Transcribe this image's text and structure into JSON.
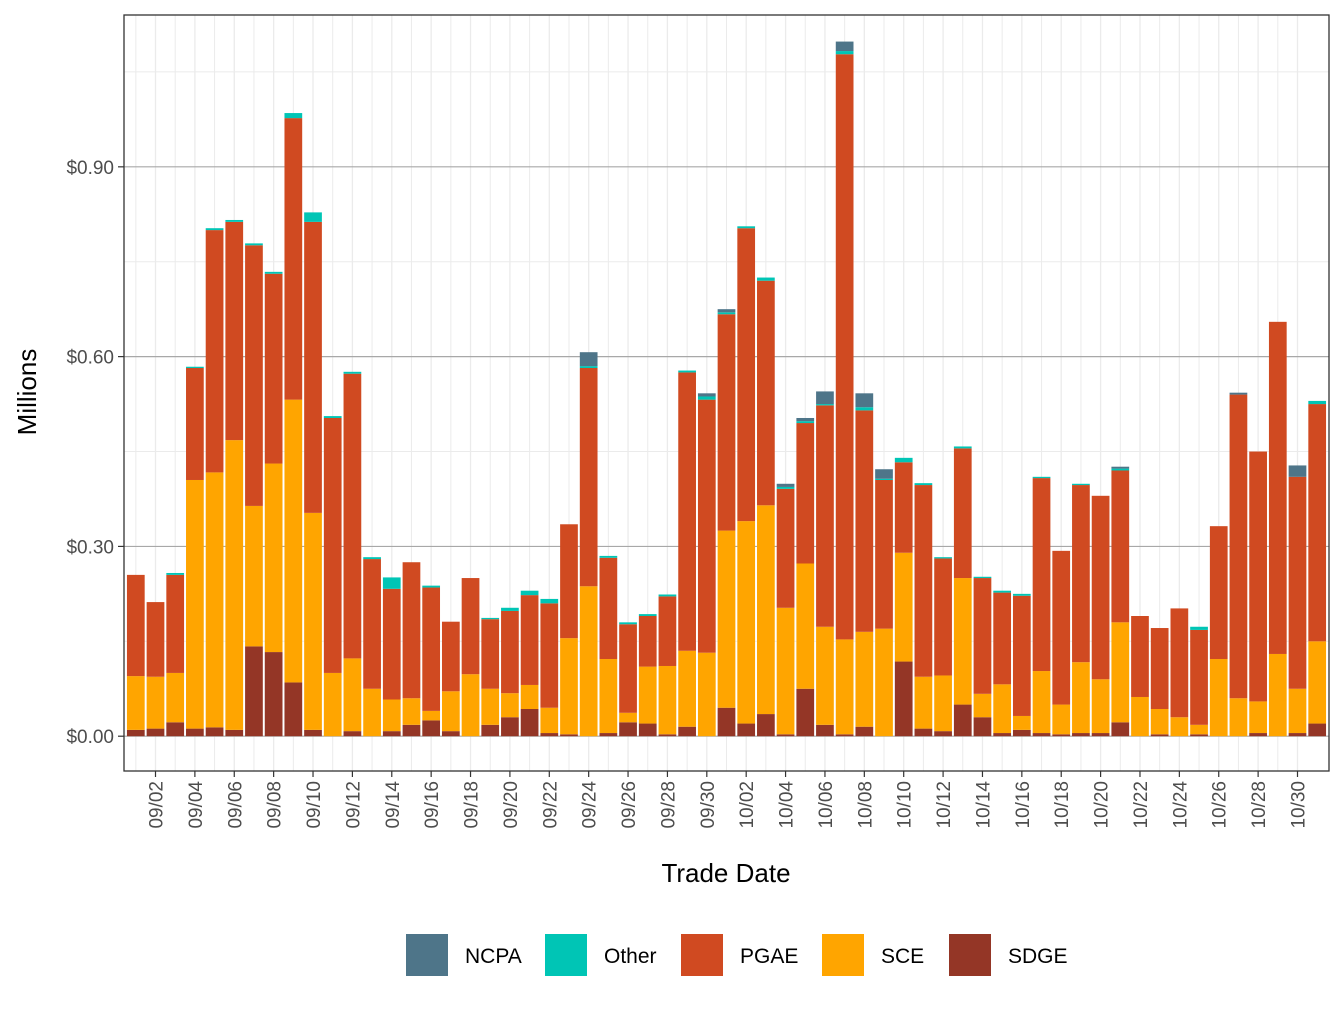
{
  "chart_data": {
    "type": "bar",
    "stacked": true,
    "xlabel": "Trade Date",
    "ylabel": "Millions",
    "ylim": [
      -0.055,
      1.14
    ],
    "grid": true,
    "legend_position": "bottom",
    "y_ticks": [
      {
        "value": 0.0,
        "label": "$0.00"
      },
      {
        "value": 0.3,
        "label": "$0.30"
      },
      {
        "value": 0.6,
        "label": "$0.60"
      },
      {
        "value": 0.9,
        "label": "$0.90"
      }
    ],
    "x_ticks": [
      {
        "index": 1,
        "label": "09/02"
      },
      {
        "index": 3,
        "label": "09/04"
      },
      {
        "index": 5,
        "label": "09/06"
      },
      {
        "index": 7,
        "label": "09/08"
      },
      {
        "index": 9,
        "label": "09/10"
      },
      {
        "index": 11,
        "label": "09/12"
      },
      {
        "index": 13,
        "label": "09/14"
      },
      {
        "index": 15,
        "label": "09/16"
      },
      {
        "index": 17,
        "label": "09/18"
      },
      {
        "index": 19,
        "label": "09/20"
      },
      {
        "index": 21,
        "label": "09/22"
      },
      {
        "index": 23,
        "label": "09/24"
      },
      {
        "index": 25,
        "label": "09/26"
      },
      {
        "index": 27,
        "label": "09/28"
      },
      {
        "index": 29,
        "label": "09/30"
      },
      {
        "index": 31,
        "label": "10/02"
      },
      {
        "index": 33,
        "label": "10/04"
      },
      {
        "index": 35,
        "label": "10/06"
      },
      {
        "index": 37,
        "label": "10/08"
      },
      {
        "index": 39,
        "label": "10/10"
      },
      {
        "index": 41,
        "label": "10/12"
      },
      {
        "index": 43,
        "label": "10/14"
      },
      {
        "index": 45,
        "label": "10/16"
      },
      {
        "index": 47,
        "label": "10/18"
      },
      {
        "index": 49,
        "label": "10/20"
      },
      {
        "index": 51,
        "label": "10/22"
      },
      {
        "index": 53,
        "label": "10/24"
      },
      {
        "index": 55,
        "label": "10/26"
      },
      {
        "index": 57,
        "label": "10/28"
      },
      {
        "index": 59,
        "label": "10/30"
      }
    ],
    "categories": [
      "09/01",
      "09/02",
      "09/03",
      "09/04",
      "09/05",
      "09/06",
      "09/07",
      "09/08",
      "09/09",
      "09/10",
      "09/11",
      "09/12",
      "09/13",
      "09/14",
      "09/15",
      "09/16",
      "09/17",
      "09/18",
      "09/19",
      "09/20",
      "09/21",
      "09/22",
      "09/23",
      "09/24",
      "09/25",
      "09/26",
      "09/27",
      "09/28",
      "09/29",
      "09/30",
      "10/01",
      "10/02",
      "10/03",
      "10/04",
      "10/05",
      "10/06",
      "10/07",
      "10/08",
      "10/09",
      "10/10",
      "10/11",
      "10/12",
      "10/13",
      "10/14",
      "10/15",
      "10/16",
      "10/17",
      "10/18",
      "10/19",
      "10/20",
      "10/21",
      "10/22",
      "10/23",
      "10/24",
      "10/25",
      "10/26",
      "10/27",
      "10/28",
      "10/29",
      "10/30",
      "10/31"
    ],
    "stack_order": [
      "SDGE",
      "SCE",
      "PGAE",
      "Other",
      "NCPA"
    ],
    "series": [
      {
        "name": "SDGE",
        "color": "#943626",
        "values": [
          0.01,
          0.012,
          0.022,
          0.012,
          0.014,
          0.01,
          0.142,
          0.133,
          0.085,
          0.01,
          0.0,
          0.008,
          0.0,
          0.008,
          0.018,
          0.025,
          0.008,
          0.0,
          0.018,
          0.03,
          0.043,
          0.005,
          0.003,
          0.0,
          0.005,
          0.022,
          0.02,
          0.003,
          0.015,
          0.0,
          0.045,
          0.02,
          0.035,
          0.003,
          0.075,
          0.018,
          0.003,
          0.015,
          0.0,
          0.118,
          0.012,
          0.008,
          0.05,
          0.03,
          0.005,
          0.01,
          0.005,
          0.003,
          0.005,
          0.005,
          0.022,
          0.0,
          0.003,
          0.0,
          0.003,
          0.0,
          0.0,
          0.005,
          0.0,
          0.005,
          0.02
        ]
      },
      {
        "name": "SCE",
        "color": "#FFA500",
        "values": [
          0.085,
          0.082,
          0.078,
          0.393,
          0.403,
          0.458,
          0.222,
          0.298,
          0.447,
          0.343,
          0.1,
          0.115,
          0.075,
          0.05,
          0.042,
          0.015,
          0.063,
          0.098,
          0.057,
          0.038,
          0.038,
          0.04,
          0.152,
          0.237,
          0.117,
          0.015,
          0.09,
          0.108,
          0.12,
          0.132,
          0.28,
          0.32,
          0.33,
          0.2,
          0.198,
          0.155,
          0.15,
          0.15,
          0.17,
          0.172,
          0.082,
          0.088,
          0.2,
          0.037,
          0.077,
          0.022,
          0.098,
          0.047,
          0.112,
          0.085,
          0.158,
          0.062,
          0.04,
          0.03,
          0.015,
          0.122,
          0.06,
          0.05,
          0.13,
          0.07,
          0.13
        ]
      },
      {
        "name": "PGAE",
        "color": "#D04A21",
        "values": [
          0.16,
          0.118,
          0.155,
          0.177,
          0.383,
          0.345,
          0.412,
          0.3,
          0.445,
          0.46,
          0.403,
          0.45,
          0.205,
          0.175,
          0.215,
          0.195,
          0.11,
          0.152,
          0.11,
          0.13,
          0.142,
          0.165,
          0.18,
          0.345,
          0.16,
          0.14,
          0.08,
          0.11,
          0.44,
          0.4,
          0.342,
          0.463,
          0.355,
          0.188,
          0.222,
          0.35,
          0.925,
          0.35,
          0.235,
          0.143,
          0.303,
          0.185,
          0.205,
          0.183,
          0.145,
          0.19,
          0.305,
          0.243,
          0.28,
          0.29,
          0.24,
          0.128,
          0.128,
          0.172,
          0.15,
          0.21,
          0.48,
          0.395,
          0.525,
          0.335,
          0.375
        ]
      },
      {
        "name": "Other",
        "color": "#00C5B5",
        "values": [
          0.0,
          0.0,
          0.003,
          0.002,
          0.003,
          0.003,
          0.003,
          0.003,
          0.008,
          0.015,
          0.003,
          0.003,
          0.003,
          0.018,
          0.0,
          0.003,
          0.0,
          0.0,
          0.002,
          0.005,
          0.007,
          0.007,
          0.0,
          0.003,
          0.003,
          0.003,
          0.003,
          0.003,
          0.003,
          0.005,
          0.003,
          0.003,
          0.005,
          0.003,
          0.003,
          0.002,
          0.005,
          0.005,
          0.002,
          0.007,
          0.003,
          0.002,
          0.003,
          0.002,
          0.003,
          0.003,
          0.002,
          0.0,
          0.002,
          0.0,
          0.003,
          0.0,
          0.0,
          0.0,
          0.005,
          0.0,
          0.0,
          0.0,
          0.0,
          0.0,
          0.005
        ]
      },
      {
        "name": "NCPA",
        "color": "#4E7589",
        "values": [
          0.0,
          0.0,
          0.0,
          0.0,
          0.0,
          0.0,
          0.0,
          0.0,
          0.0,
          0.0,
          0.0,
          0.0,
          0.0,
          0.0,
          0.0,
          0.0,
          0.0,
          0.0,
          0.0,
          0.0,
          0.0,
          0.0,
          0.0,
          0.022,
          0.0,
          0.0,
          0.0,
          0.0,
          0.0,
          0.005,
          0.005,
          0.0,
          0.0,
          0.005,
          0.005,
          0.02,
          0.015,
          0.022,
          0.015,
          0.0,
          0.0,
          0.0,
          0.0,
          0.0,
          0.0,
          0.0,
          0.0,
          0.0,
          0.0,
          0.0,
          0.003,
          0.0,
          0.0,
          0.0,
          0.0,
          0.0,
          0.003,
          0.0,
          0.0,
          0.018,
          0.0
        ]
      }
    ],
    "legend": [
      "NCPA",
      "Other",
      "PGAE",
      "SCE",
      "SDGE"
    ]
  }
}
